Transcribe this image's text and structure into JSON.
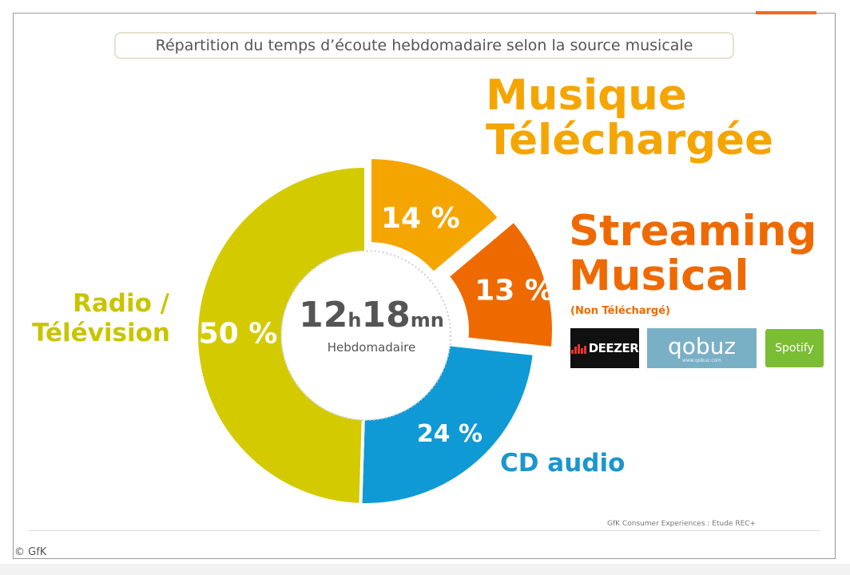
{
  "title": "Répartition du temps d’écoute hebdomadaire selon la source musicale",
  "center": {
    "hours": "12",
    "h_unit": "h",
    "minutes": "18",
    "mn_unit": "mn",
    "caption": "Hebdomadaire"
  },
  "labels": {
    "download": [
      "Musique",
      "Téléchargée"
    ],
    "streaming": [
      "Streaming",
      "Musical"
    ],
    "streaming_sub": "(Non Téléchargé)",
    "radio": [
      "Radio /",
      "Télévision"
    ],
    "cd": "CD audio"
  },
  "logos": {
    "deezer": "DEEZER",
    "qobuz": "qobuz",
    "qobuz_sub": "www.qobuz.com",
    "spotify": "Spotify"
  },
  "source": "GfK Consumer Experiences : Etude REC+",
  "copyright": "© GfK",
  "chart_data": {
    "type": "pie",
    "title": "Répartition du temps d’écoute hebdomadaire selon la source musicale",
    "categories": [
      "Musique Téléchargée",
      "Streaming Musical",
      "CD audio",
      "Radio / Télévision"
    ],
    "values": [
      14,
      13,
      24,
      50
    ],
    "value_labels": [
      "14 %",
      "13 %",
      "24 %",
      "50 %"
    ],
    "colors": [
      "#f5a500",
      "#ee6a00",
      "#0f9ad6",
      "#d4ca00"
    ],
    "center_text": "12h18mn Hebdomadaire",
    "donut": true
  }
}
